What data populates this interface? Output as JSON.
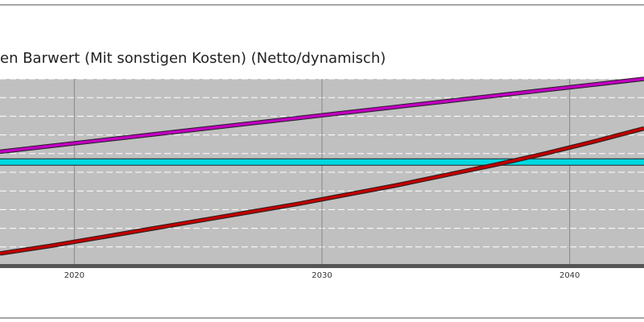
{
  "chart_data": {
    "type": "line",
    "title": "en Barwert (Mit sonstigen Kosten) (Netto/dynamisch)",
    "x": [
      2017,
      2019,
      2021,
      2023,
      2025,
      2027,
      2029,
      2031,
      2033,
      2035,
      2037,
      2039,
      2041,
      2043
    ],
    "series": [
      {
        "color": "#c000c0",
        "values": [
          6.1,
          6.4,
          6.7,
          7.0,
          7.3,
          7.6,
          7.9,
          8.2,
          8.5,
          8.8,
          9.1,
          9.4,
          9.7,
          10.0
        ]
      },
      {
        "color": "#00d8e0",
        "values": [
          5.55,
          5.55,
          5.55,
          5.55,
          5.55,
          5.55,
          5.55,
          5.55,
          5.55,
          5.55,
          5.55,
          5.55,
          5.55,
          5.55
        ]
      },
      {
        "color": "#c00000",
        "values": [
          0.65,
          1.05,
          1.5,
          1.95,
          2.4,
          2.85,
          3.3,
          3.8,
          4.3,
          4.85,
          5.4,
          6.0,
          6.65,
          7.35
        ]
      }
    ],
    "xlim": [
      2017,
      2043
    ],
    "xticks": [
      2020,
      2030,
      2040
    ],
    "ylim": [
      0,
      10
    ],
    "yticks": [
      0,
      1,
      2,
      3,
      4,
      5,
      6,
      7,
      8,
      9,
      10
    ],
    "grid": true
  }
}
